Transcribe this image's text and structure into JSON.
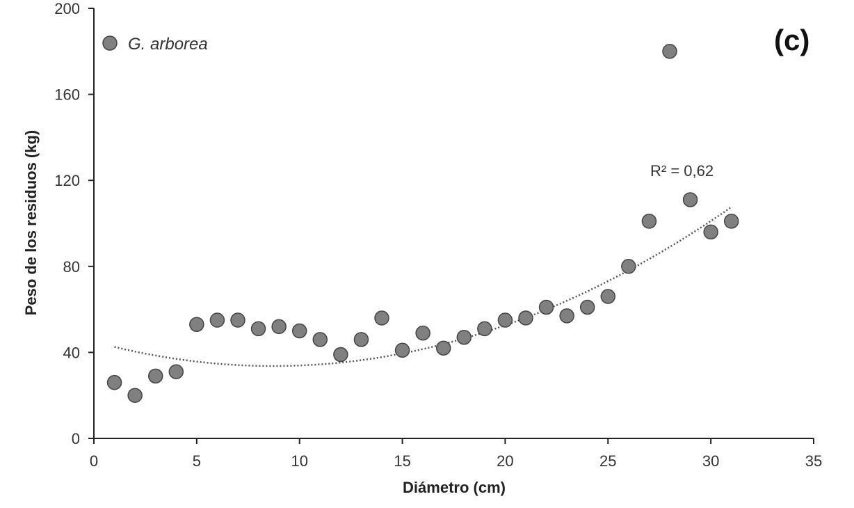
{
  "chart_data": {
    "type": "scatter",
    "panel_label": "(c)",
    "xlabel": "Diámetro (cm)",
    "ylabel": "Peso de los residuos (kg)",
    "xlim": [
      0,
      35
    ],
    "ylim": [
      0,
      200
    ],
    "xticks": [
      0,
      5,
      10,
      15,
      20,
      25,
      30,
      35
    ],
    "yticks": [
      0,
      40,
      80,
      120,
      160,
      200
    ],
    "grid": false,
    "legend_position": "top-left",
    "series": [
      {
        "name": "G. arborea",
        "color": "#808080",
        "x": [
          1,
          2,
          3,
          4,
          5,
          6,
          7,
          8,
          9,
          10,
          11,
          12,
          13,
          14,
          15,
          16,
          17,
          18,
          19,
          20,
          21,
          22,
          23,
          24,
          25,
          26,
          27,
          28,
          29,
          30,
          31
        ],
        "y": [
          26,
          20,
          29,
          31,
          53,
          55,
          55,
          51,
          52,
          50,
          46,
          39,
          46,
          56,
          41,
          49,
          42,
          47,
          51,
          55,
          56,
          61,
          57,
          61,
          66,
          80,
          101,
          180,
          111,
          96,
          101
        ]
      }
    ],
    "trendline": {
      "type": "polynomial-2",
      "x_range": [
        1,
        31
      ],
      "coefficients": [
        45.0,
        -2.6,
        0.149
      ],
      "label": "R² = 0,62"
    }
  }
}
